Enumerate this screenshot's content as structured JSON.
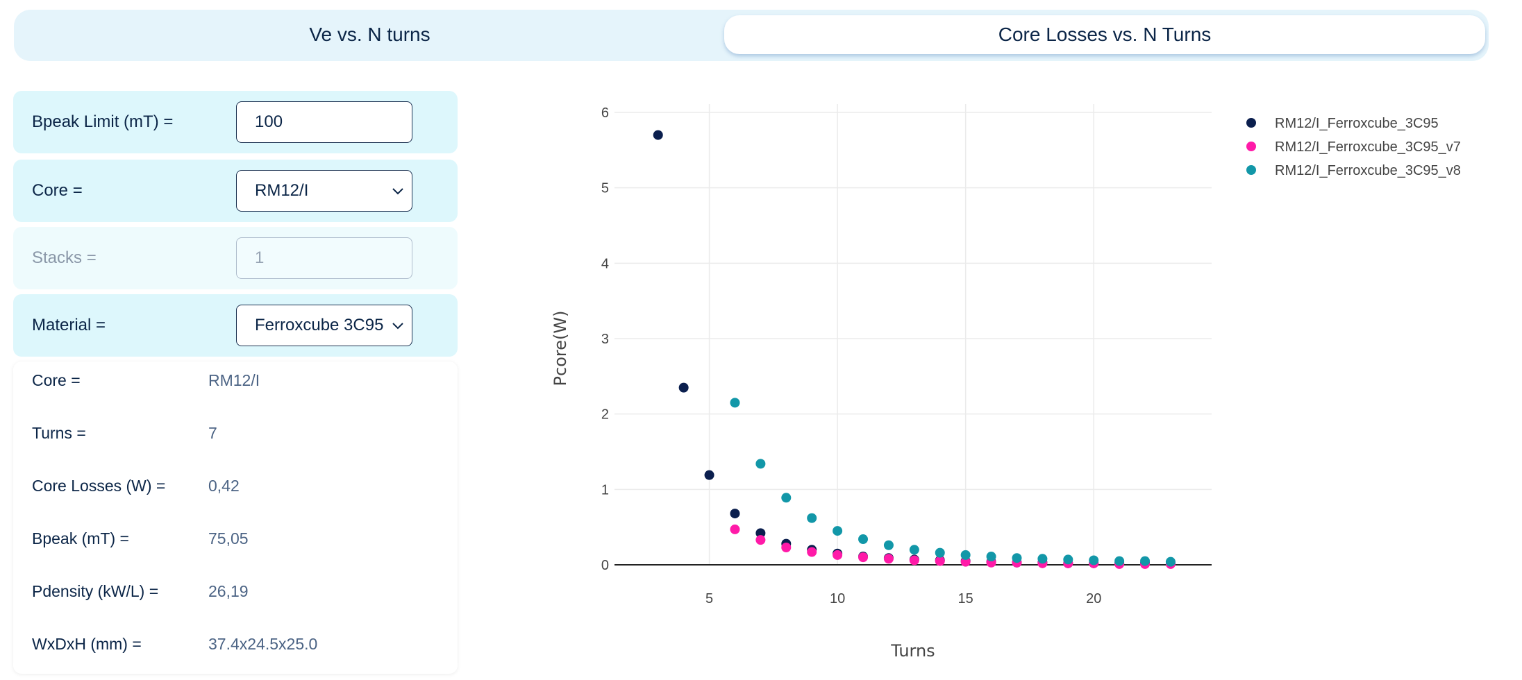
{
  "tabs": [
    {
      "label": "Ve vs. N turns"
    },
    {
      "label": "Core Losses vs. N Turns"
    }
  ],
  "form": {
    "bpeak_limit": {
      "label": "Bpeak Limit (mT) =",
      "value": "100"
    },
    "core": {
      "label": "Core =",
      "value": "RM12/I"
    },
    "stacks": {
      "label": "Stacks =",
      "placeholder": "1"
    },
    "material": {
      "label": "Material =",
      "value": "Ferroxcube 3C95"
    }
  },
  "info": {
    "rows": [
      {
        "label": "Core =",
        "value": "RM12/I"
      },
      {
        "label": "Turns =",
        "value": "7"
      },
      {
        "label": "Core Losses (W) =",
        "value": "0,42"
      },
      {
        "label": "Bpeak (mT) =",
        "value": "75,05"
      },
      {
        "label": "Pdensity (kW/L) =",
        "value": "26,19"
      },
      {
        "label": "WxDxH (mm) =",
        "value": "37.4x24.5x25.0"
      }
    ]
  },
  "icons": {
    "select_arrow": "chevron-down-icon"
  },
  "chart_data": {
    "type": "scatter",
    "xlabel": "Turns",
    "ylabel": "Pcore(W)",
    "xlim": [
      1.3,
      24.6
    ],
    "ylim": [
      0,
      6
    ],
    "xticks": [
      5,
      10,
      15,
      20
    ],
    "yticks": [
      0,
      1,
      2,
      3,
      4,
      5,
      6
    ],
    "grid": true,
    "legend_position": "top-right",
    "series": [
      {
        "name": "RM12/I_Ferroxcube_3C95",
        "color": "#0b1f4e",
        "points": [
          [
            3,
            5.7
          ],
          [
            4,
            2.35
          ],
          [
            5,
            1.19
          ],
          [
            6,
            0.68
          ],
          [
            7,
            0.42
          ],
          [
            8,
            0.28
          ],
          [
            9,
            0.2
          ],
          [
            10,
            0.15
          ],
          [
            11,
            0.11
          ],
          [
            12,
            0.09
          ],
          [
            13,
            0.07
          ],
          [
            14,
            0.06
          ],
          [
            15,
            0.05
          ],
          [
            16,
            0.04
          ],
          [
            17,
            0.03
          ],
          [
            18,
            0.03
          ],
          [
            19,
            0.02
          ],
          [
            20,
            0.02
          ],
          [
            21,
            0.02
          ],
          [
            22,
            0.02
          ],
          [
            23,
            0.02
          ]
        ]
      },
      {
        "name": "RM12/I_Ferroxcube_3C95_v7",
        "color": "#ff1aa8",
        "points": [
          [
            6,
            0.47
          ],
          [
            7,
            0.33
          ],
          [
            8,
            0.23
          ],
          [
            9,
            0.17
          ],
          [
            10,
            0.13
          ],
          [
            11,
            0.1
          ],
          [
            12,
            0.08
          ],
          [
            13,
            0.06
          ],
          [
            14,
            0.05
          ],
          [
            15,
            0.04
          ],
          [
            16,
            0.03
          ],
          [
            17,
            0.03
          ],
          [
            18,
            0.02
          ],
          [
            19,
            0.02
          ],
          [
            20,
            0.02
          ],
          [
            21,
            0.01
          ],
          [
            22,
            0.01
          ],
          [
            23,
            0.01
          ]
        ]
      },
      {
        "name": "RM12/I_Ferroxcube_3C95_v8",
        "color": "#1297a8",
        "points": [
          [
            6,
            2.15
          ],
          [
            7,
            1.34
          ],
          [
            8,
            0.89
          ],
          [
            9,
            0.62
          ],
          [
            10,
            0.45
          ],
          [
            11,
            0.34
          ],
          [
            12,
            0.26
          ],
          [
            13,
            0.2
          ],
          [
            14,
            0.16
          ],
          [
            15,
            0.13
          ],
          [
            16,
            0.11
          ],
          [
            17,
            0.09
          ],
          [
            18,
            0.08
          ],
          [
            19,
            0.07
          ],
          [
            20,
            0.06
          ],
          [
            21,
            0.05
          ],
          [
            22,
            0.05
          ],
          [
            23,
            0.04
          ]
        ]
      }
    ]
  }
}
